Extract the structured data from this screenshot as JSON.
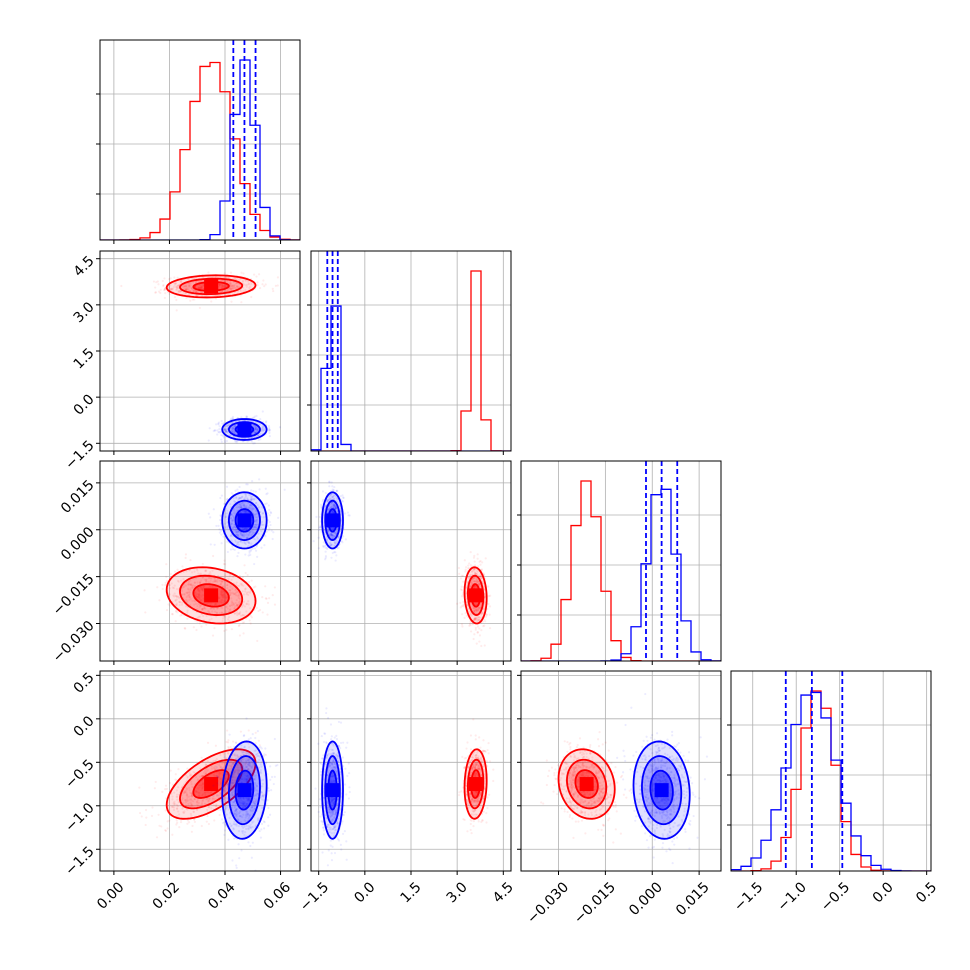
{
  "chart_data": {
    "type": "corner",
    "grid": true,
    "series": [
      {
        "color": "#ff0000",
        "means": [
          0.035,
          3.6,
          -0.021,
          -0.75
        ],
        "sds": [
          0.008,
          0.18,
          0.0045,
          0.2
        ],
        "corr": [
          [
            0,
            1,
            0.1
          ],
          [
            0,
            2,
            -0.2
          ],
          [
            0,
            3,
            0.6
          ],
          [
            1,
            2,
            -0.1
          ],
          [
            1,
            3,
            0.1
          ],
          [
            2,
            3,
            -0.15
          ]
        ]
      },
      {
        "color": "#0000ff",
        "means": [
          0.047,
          -1.05,
          0.003,
          -0.82
        ],
        "sds": [
          0.004,
          0.17,
          0.0045,
          0.28
        ],
        "corr": [
          [
            0,
            1,
            0.0
          ],
          [
            0,
            2,
            0.0
          ],
          [
            0,
            3,
            0.1
          ],
          [
            1,
            2,
            0.0
          ],
          [
            1,
            3,
            0.0
          ],
          [
            2,
            3,
            -0.1
          ]
        ]
      }
    ],
    "quantile_color": "#0000ff",
    "quantiles": [
      [
        0.043,
        0.047,
        0.051
      ],
      [
        -1.22,
        -1.05,
        -0.88
      ],
      [
        -0.002,
        0.003,
        0.008
      ],
      [
        -1.12,
        -0.82,
        -0.47
      ]
    ],
    "ranges": [
      [
        -0.005,
        0.067
      ],
      [
        -1.75,
        4.75
      ],
      [
        -0.042,
        0.022
      ],
      [
        -1.75,
        0.55
      ]
    ],
    "ticks": [
      [
        "0.00",
        "0.02",
        "0.04",
        "0.06"
      ],
      [
        "−1.5",
        "0.0",
        "1.5",
        "3.0",
        "4.5"
      ],
      [
        "−0.030",
        "−0.015",
        "0.000",
        "0.015"
      ],
      [
        "−1.5",
        "−1.0",
        "−0.5",
        "0.0",
        "0.5"
      ]
    ],
    "tick_values": [
      [
        0.0,
        0.02,
        0.04,
        0.06
      ],
      [
        -1.5,
        0.0,
        1.5,
        3.0,
        4.5
      ],
      [
        -0.03,
        -0.015,
        0.0,
        0.015
      ],
      [
        -1.5,
        -1.0,
        -0.5,
        0.0,
        0.5
      ]
    ]
  }
}
